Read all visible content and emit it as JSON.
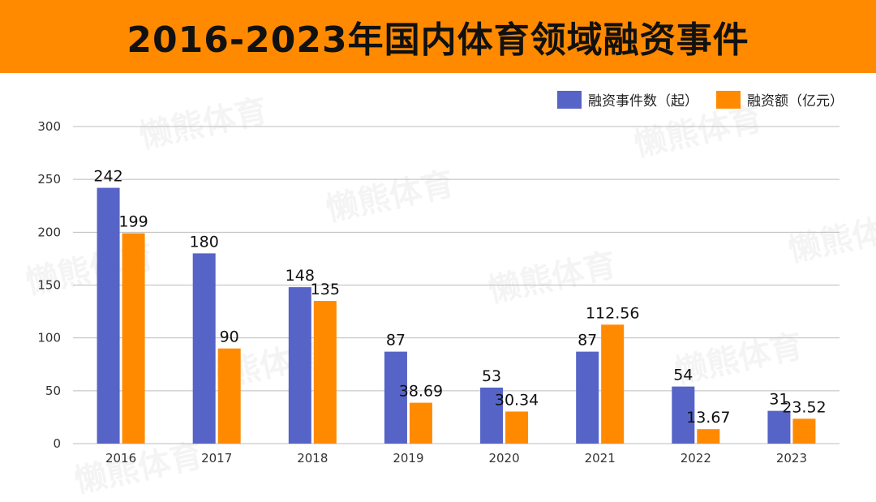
{
  "banner": {
    "title": "2016-2023年国内体育领域融资事件"
  },
  "watermark": {
    "text": "懒熊体育"
  },
  "colors": {
    "events": "#5663c7",
    "amount": "#ff8a00",
    "banner": "#ff8a00",
    "grid": "#bcbcbc"
  },
  "chart_data": {
    "type": "bar",
    "title": "2016-2023年国内体育领域融资事件",
    "categories": [
      "2016",
      "2017",
      "2018",
      "2019",
      "2020",
      "2021",
      "2022",
      "2023"
    ],
    "series": [
      {
        "name": "融资事件数（起）",
        "values": [
          242,
          180,
          148,
          87,
          53,
          87,
          54,
          31
        ]
      },
      {
        "name": "融资额（亿元）",
        "values": [
          199,
          90,
          135,
          38.69,
          30.34,
          112.56,
          13.67,
          23.52
        ]
      }
    ],
    "data_labels": [
      [
        "242",
        "180",
        "148",
        "87",
        "53",
        "87",
        "54",
        "31"
      ],
      [
        "199",
        "90",
        "135",
        "38.69",
        "30.34",
        "112.56",
        "13.67",
        "23.52"
      ]
    ],
    "ylim": [
      0,
      300
    ],
    "yticks": [
      0,
      50,
      100,
      150,
      200,
      250,
      300
    ],
    "ytick_labels": [
      "0",
      "50",
      "100",
      "150",
      "200",
      "250",
      "300"
    ],
    "xlabel": "",
    "ylabel": "",
    "grid": true,
    "legend_position": "top-right"
  }
}
